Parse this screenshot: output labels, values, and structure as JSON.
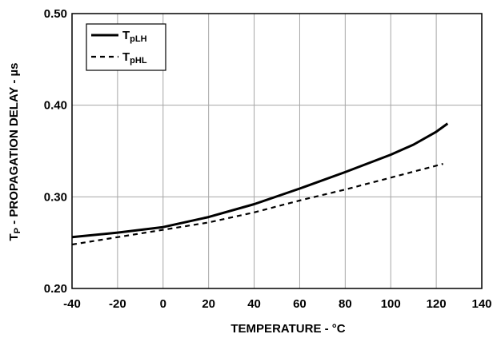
{
  "chart_data": {
    "type": "line",
    "xlabel": "TEMPERATURE - °C",
    "ylabel_main": "T",
    "ylabel_sub": "P",
    "ylabel_rest": " - PROPAGATION DELAY - µs",
    "xlim": [
      -40,
      140
    ],
    "ylim": [
      0.2,
      0.5
    ],
    "x_ticks": [
      -40,
      -20,
      0,
      20,
      40,
      60,
      80,
      100,
      120,
      140
    ],
    "x_tick_labels": [
      "-40",
      "-20",
      "0",
      "20",
      "40",
      "60",
      "80",
      "100",
      "120",
      "140"
    ],
    "y_ticks": [
      0.2,
      0.3,
      0.4,
      0.5
    ],
    "y_tick_labels": [
      "0.20",
      "0.30",
      "0.40",
      "0.50"
    ],
    "grid": true,
    "legend_position": "top-left",
    "series": [
      {
        "name_main": "T",
        "name_sub": "pLH",
        "style": "solid",
        "color": "#000000",
        "x": [
          -40,
          -20,
          0,
          20,
          40,
          60,
          80,
          100,
          110,
          120,
          125
        ],
        "y": [
          0.256,
          0.261,
          0.267,
          0.278,
          0.292,
          0.309,
          0.327,
          0.346,
          0.357,
          0.371,
          0.38
        ]
      },
      {
        "name_main": "T",
        "name_sub": "pHL",
        "style": "dashed",
        "color": "#000000",
        "x": [
          -40,
          -20,
          0,
          20,
          40,
          60,
          80,
          100,
          123
        ],
        "y": [
          0.248,
          0.256,
          0.264,
          0.272,
          0.283,
          0.296,
          0.308,
          0.321,
          0.336
        ]
      }
    ]
  }
}
